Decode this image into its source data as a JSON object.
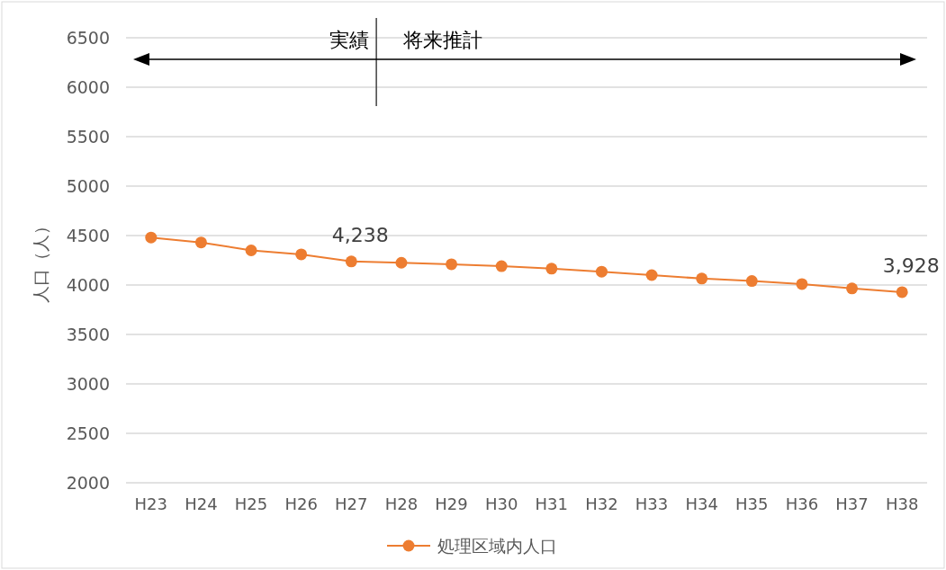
{
  "chart_data": {
    "type": "line",
    "ylabel": "人口（人）",
    "categories": [
      "H23",
      "H24",
      "H25",
      "H26",
      "H27",
      "H28",
      "H29",
      "H30",
      "H31",
      "H32",
      "H33",
      "H34",
      "H35",
      "H36",
      "H37",
      "H38"
    ],
    "series": [
      {
        "name": "処理区域内人口",
        "color": "#ed7d31",
        "values": [
          4480,
          4430,
          4350,
          4310,
          4238,
          4225,
          4210,
          4190,
          4165,
          4135,
          4100,
          4065,
          4040,
          4010,
          3965,
          3928
        ],
        "value_labels": [
          null,
          null,
          null,
          null,
          "4,238",
          null,
          null,
          null,
          null,
          null,
          null,
          null,
          null,
          null,
          null,
          "3,928"
        ]
      }
    ],
    "ylim": [
      2000,
      6500
    ],
    "yticks": [
      2000,
      2500,
      3000,
      3500,
      4000,
      4500,
      5000,
      5500,
      6000,
      6500
    ],
    "grid": "y",
    "legend": "bottom",
    "marker": "circle",
    "line_style": "solid",
    "annotations": [
      "実績",
      "将来推計"
    ]
  }
}
